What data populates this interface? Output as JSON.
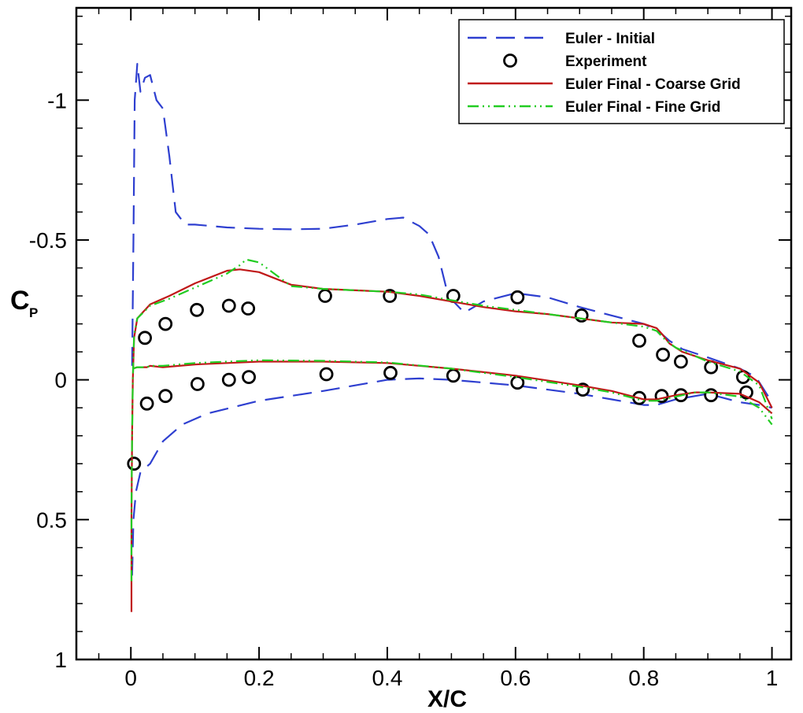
{
  "chart_data": {
    "type": "line",
    "title": "",
    "xlabel": "X/C",
    "ylabel": "C",
    "ylabel_sub": "P",
    "xlim": [
      -0.085,
      1.03
    ],
    "ylim": [
      -1.33,
      1.0
    ],
    "y_inverted": true,
    "x_ticks": [
      {
        "value": 0,
        "label": "0"
      },
      {
        "value": 0.2,
        "label": "0.2"
      },
      {
        "value": 0.4,
        "label": "0.4"
      },
      {
        "value": 0.6,
        "label": "0.6"
      },
      {
        "value": 0.8,
        "label": "0.8"
      },
      {
        "value": 1,
        "label": "1"
      }
    ],
    "x_minor_step": 0.05,
    "y_ticks": [
      {
        "value": -1,
        "label": "-1"
      },
      {
        "value": -0.5,
        "label": "-0.5"
      },
      {
        "value": 0,
        "label": "0"
      },
      {
        "value": 0.5,
        "label": "0.5"
      },
      {
        "value": 1,
        "label": "1"
      }
    ],
    "y_minor_step": 0.1,
    "grid": false,
    "legend_position": "top-right",
    "series": [
      {
        "name": "Euler - Initial",
        "kind": "line",
        "style": "dashed",
        "color": "#2e3fd0",
        "segments": [
          [
            [
              0.002,
              -0.05
            ],
            [
              0.004,
              -0.5
            ],
            [
              0.006,
              -1.0
            ],
            [
              0.01,
              -1.13
            ],
            [
              0.015,
              -1.03
            ],
            [
              0.022,
              -1.08
            ],
            [
              0.03,
              -1.09
            ],
            [
              0.04,
              -1.0
            ],
            [
              0.05,
              -0.97
            ],
            [
              0.06,
              -0.8
            ],
            [
              0.07,
              -0.6
            ],
            [
              0.085,
              -0.555
            ],
            [
              0.1,
              -0.555
            ],
            [
              0.15,
              -0.545
            ],
            [
              0.2,
              -0.54
            ],
            [
              0.25,
              -0.538
            ],
            [
              0.3,
              -0.54
            ],
            [
              0.35,
              -0.555
            ],
            [
              0.4,
              -0.575
            ],
            [
              0.425,
              -0.58
            ],
            [
              0.45,
              -0.55
            ],
            [
              0.465,
              -0.52
            ],
            [
              0.48,
              -0.44
            ],
            [
              0.495,
              -0.3
            ],
            [
              0.52,
              -0.24
            ],
            [
              0.55,
              -0.28
            ],
            [
              0.6,
              -0.31
            ],
            [
              0.65,
              -0.295
            ],
            [
              0.7,
              -0.26
            ],
            [
              0.75,
              -0.23
            ],
            [
              0.8,
              -0.2
            ],
            [
              0.82,
              -0.18
            ],
            [
              0.84,
              -0.14
            ],
            [
              0.86,
              -0.11
            ],
            [
              0.9,
              -0.08
            ],
            [
              0.95,
              -0.04
            ],
            [
              0.975,
              -0.01
            ],
            [
              1.0,
              0.08
            ]
          ],
          [
            [
              0.002,
              0.7
            ],
            [
              0.004,
              0.5
            ],
            [
              0.008,
              0.4
            ],
            [
              0.015,
              0.33
            ],
            [
              0.03,
              0.3
            ],
            [
              0.05,
              0.22
            ],
            [
              0.08,
              0.16
            ],
            [
              0.12,
              0.12
            ],
            [
              0.2,
              0.075
            ],
            [
              0.3,
              0.04
            ],
            [
              0.4,
              0.0
            ],
            [
              0.45,
              -0.005
            ],
            [
              0.5,
              0.0
            ],
            [
              0.6,
              0.02
            ],
            [
              0.7,
              0.05
            ],
            [
              0.75,
              0.07
            ],
            [
              0.8,
              0.09
            ],
            [
              0.82,
              0.09
            ],
            [
              0.85,
              0.07
            ],
            [
              0.9,
              0.05
            ],
            [
              0.95,
              0.08
            ],
            [
              0.98,
              0.09
            ],
            [
              1.0,
              0.1
            ]
          ]
        ]
      },
      {
        "name": "Experiment",
        "kind": "scatter",
        "color": "#000000",
        "points": [
          [
            0.022,
            -0.15
          ],
          [
            0.054,
            -0.2
          ],
          [
            0.103,
            -0.25
          ],
          [
            0.153,
            -0.265
          ],
          [
            0.183,
            -0.255
          ],
          [
            0.303,
            -0.3
          ],
          [
            0.404,
            -0.3
          ],
          [
            0.503,
            -0.3
          ],
          [
            0.603,
            -0.295
          ],
          [
            0.703,
            -0.23
          ],
          [
            0.793,
            -0.14
          ],
          [
            0.83,
            -0.09
          ],
          [
            0.858,
            -0.065
          ],
          [
            0.905,
            -0.045
          ],
          [
            0.955,
            -0.01
          ],
          [
            0.005,
            0.3
          ],
          [
            0.025,
            0.085
          ],
          [
            0.054,
            0.058
          ],
          [
            0.104,
            0.015
          ],
          [
            0.153,
            0.0
          ],
          [
            0.184,
            -0.01
          ],
          [
            0.305,
            -0.02
          ],
          [
            0.405,
            -0.025
          ],
          [
            0.503,
            -0.015
          ],
          [
            0.603,
            0.01
          ],
          [
            0.705,
            0.035
          ],
          [
            0.793,
            0.065
          ],
          [
            0.828,
            0.058
          ],
          [
            0.858,
            0.055
          ],
          [
            0.905,
            0.055
          ],
          [
            0.96,
            0.045
          ]
        ]
      },
      {
        "name": "Euler Final - Coarse Grid",
        "kind": "line",
        "style": "solid",
        "color": "#c01818",
        "segments": [
          [
            [
              0.001,
              0.83
            ],
            [
              0.001,
              0.5
            ],
            [
              0.002,
              0.2
            ],
            [
              0.003,
              0.0
            ],
            [
              0.005,
              -0.15
            ],
            [
              0.01,
              -0.22
            ],
            [
              0.03,
              -0.27
            ],
            [
              0.06,
              -0.3
            ],
            [
              0.1,
              -0.345
            ],
            [
              0.15,
              -0.39
            ],
            [
              0.17,
              -0.395
            ],
            [
              0.2,
              -0.385
            ],
            [
              0.25,
              -0.34
            ],
            [
              0.3,
              -0.325
            ],
            [
              0.35,
              -0.32
            ],
            [
              0.4,
              -0.315
            ],
            [
              0.45,
              -0.3
            ],
            [
              0.5,
              -0.28
            ],
            [
              0.55,
              -0.26
            ],
            [
              0.6,
              -0.245
            ],
            [
              0.65,
              -0.235
            ],
            [
              0.7,
              -0.22
            ],
            [
              0.75,
              -0.205
            ],
            [
              0.8,
              -0.2
            ],
            [
              0.82,
              -0.185
            ],
            [
              0.83,
              -0.16
            ],
            [
              0.84,
              -0.13
            ],
            [
              0.86,
              -0.1
            ],
            [
              0.9,
              -0.07
            ],
            [
              0.95,
              -0.04
            ],
            [
              0.98,
              0.01
            ],
            [
              1.0,
              0.1
            ]
          ],
          [
            [
              0.003,
              -0.04
            ],
            [
              0.01,
              -0.045
            ],
            [
              0.025,
              -0.045
            ],
            [
              0.03,
              -0.05
            ],
            [
              0.05,
              -0.045
            ],
            [
              0.1,
              -0.055
            ],
            [
              0.15,
              -0.06
            ],
            [
              0.2,
              -0.065
            ],
            [
              0.3,
              -0.065
            ],
            [
              0.4,
              -0.06
            ],
            [
              0.5,
              -0.04
            ],
            [
              0.6,
              -0.015
            ],
            [
              0.7,
              0.02
            ],
            [
              0.75,
              0.04
            ],
            [
              0.8,
              0.07
            ],
            [
              0.82,
              0.07
            ],
            [
              0.85,
              0.055
            ],
            [
              0.88,
              0.045
            ],
            [
              0.9,
              0.045
            ],
            [
              0.95,
              0.05
            ],
            [
              0.98,
              0.08
            ],
            [
              1.0,
              0.12
            ]
          ]
        ]
      },
      {
        "name": "Euler Final - Fine Grid",
        "kind": "line",
        "style": "dashdotdot",
        "color": "#22cc22",
        "segments": [
          [
            [
              0.001,
              0.72
            ],
            [
              0.001,
              0.45
            ],
            [
              0.002,
              0.2
            ],
            [
              0.003,
              0.0
            ],
            [
              0.005,
              -0.16
            ],
            [
              0.01,
              -0.22
            ],
            [
              0.03,
              -0.265
            ],
            [
              0.06,
              -0.29
            ],
            [
              0.1,
              -0.33
            ],
            [
              0.15,
              -0.38
            ],
            [
              0.17,
              -0.41
            ],
            [
              0.18,
              -0.43
            ],
            [
              0.2,
              -0.42
            ],
            [
              0.25,
              -0.335
            ],
            [
              0.3,
              -0.325
            ],
            [
              0.35,
              -0.32
            ],
            [
              0.4,
              -0.315
            ],
            [
              0.45,
              -0.305
            ],
            [
              0.5,
              -0.285
            ],
            [
              0.55,
              -0.265
            ],
            [
              0.6,
              -0.25
            ],
            [
              0.65,
              -0.235
            ],
            [
              0.7,
              -0.22
            ],
            [
              0.75,
              -0.205
            ],
            [
              0.8,
              -0.19
            ],
            [
              0.82,
              -0.175
            ],
            [
              0.835,
              -0.14
            ],
            [
              0.85,
              -0.115
            ],
            [
              0.88,
              -0.085
            ],
            [
              0.9,
              -0.065
            ],
            [
              0.95,
              -0.03
            ],
            [
              0.98,
              0.02
            ],
            [
              1.0,
              0.14
            ]
          ],
          [
            [
              0.003,
              -0.04
            ],
            [
              0.01,
              -0.045
            ],
            [
              0.025,
              -0.045
            ],
            [
              0.03,
              -0.05
            ],
            [
              0.05,
              -0.05
            ],
            [
              0.1,
              -0.06
            ],
            [
              0.15,
              -0.065
            ],
            [
              0.2,
              -0.07
            ],
            [
              0.3,
              -0.068
            ],
            [
              0.4,
              -0.062
            ],
            [
              0.5,
              -0.04
            ],
            [
              0.6,
              -0.01
            ],
            [
              0.7,
              0.025
            ],
            [
              0.75,
              0.045
            ],
            [
              0.8,
              0.075
            ],
            [
              0.82,
              0.075
            ],
            [
              0.85,
              0.06
            ],
            [
              0.88,
              0.045
            ],
            [
              0.9,
              0.045
            ],
            [
              0.95,
              0.06
            ],
            [
              0.98,
              0.1
            ],
            [
              1.0,
              0.16
            ]
          ]
        ]
      }
    ]
  }
}
